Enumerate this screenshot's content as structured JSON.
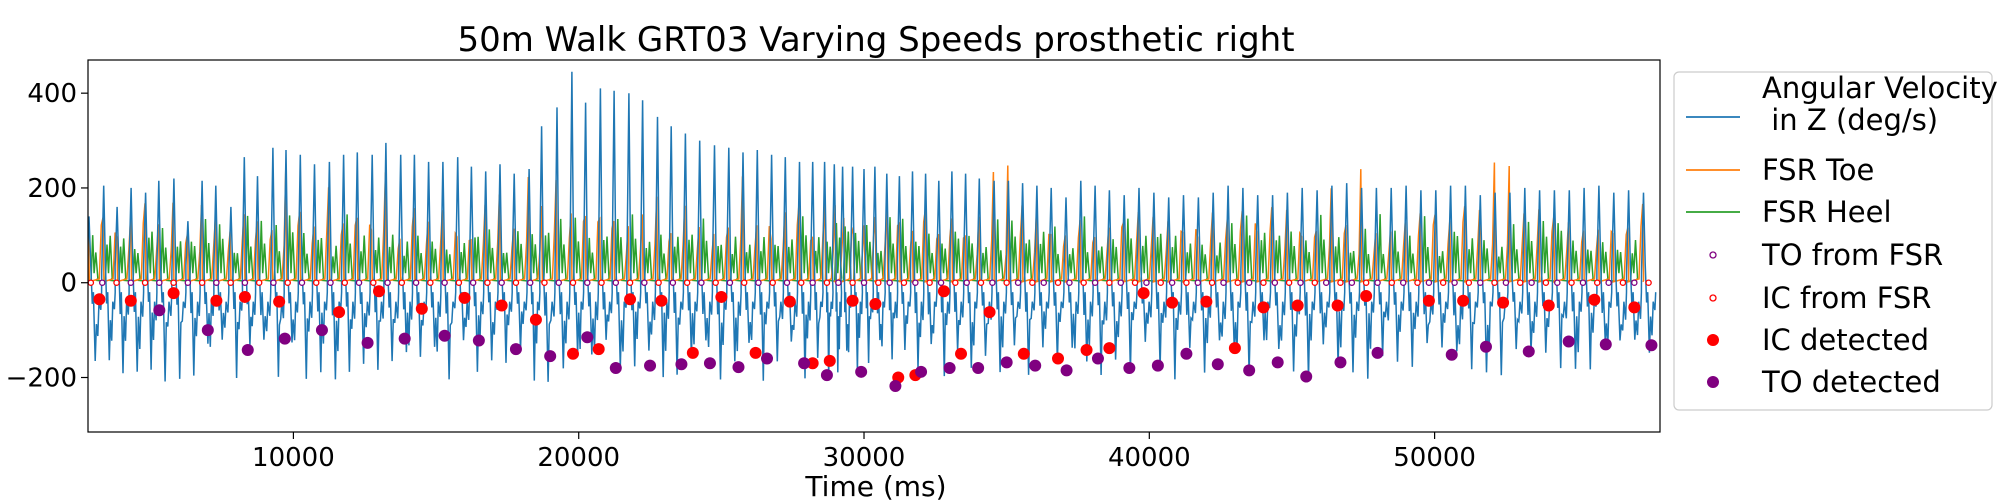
{
  "chart_data": {
    "type": "line",
    "title": "50m Walk GRT03 Varying Speeds prosthetic right",
    "xlabel": "Time (ms)",
    "ylabel": "",
    "xlim": [
      2800,
      57900
    ],
    "ylim": [
      -315,
      470
    ],
    "xticks": [
      10000,
      20000,
      30000,
      40000,
      50000
    ],
    "yticks": [
      -200,
      0,
      200,
      400
    ],
    "xtick_labels": [
      "10000",
      "20000",
      "30000",
      "40000",
      "50000"
    ],
    "ytick_labels": [
      "−200",
      "0",
      "200",
      "400"
    ],
    "grid": false,
    "legend_position": "outside-right",
    "series": [
      {
        "name": "Angular Velocity\n in Z (deg/s)",
        "kind": "line",
        "color": "#1f77b4",
        "x": [
          2836,
          3350,
          3820,
          4310,
          4820,
          5280,
          5810,
          6300,
          6800,
          7280,
          7810,
          8280,
          8740,
          9280,
          9740,
          10240,
          10740,
          11260,
          11760,
          12240,
          12760,
          13240,
          13760,
          14240,
          14740,
          15240,
          15760,
          16240,
          16740,
          17240,
          17740,
          18260,
          18700,
          19240,
          19760,
          20240,
          20760,
          21240,
          21760,
          22240,
          22760,
          23240,
          23740,
          24240,
          24760,
          25260,
          25760,
          26260,
          26760,
          27240,
          27740,
          28200,
          28620,
          28960,
          29250,
          29600,
          30000,
          30380,
          30800,
          31240,
          31700,
          32160,
          32620,
          33080,
          33560,
          34040,
          34560,
          35060,
          35560,
          36060,
          36560,
          37080,
          37600,
          38100,
          38600,
          39120,
          39640,
          40160,
          40680,
          41200,
          41720,
          42240,
          42760,
          43280,
          43800,
          44320,
          44840,
          45360,
          45880,
          46400,
          46920,
          47440,
          47960,
          48480,
          49000,
          49520,
          50040,
          50560,
          51080,
          51600,
          52120,
          52640,
          53160,
          53680,
          54200,
          54720,
          55240,
          55760,
          56280,
          56800,
          57320
        ],
        "peaks": [
          140,
          205,
          160,
          200,
          190,
          215,
          220,
          130,
          215,
          205,
          160,
          265,
          225,
          285,
          280,
          270,
          250,
          255,
          270,
          275,
          270,
          295,
          270,
          270,
          255,
          255,
          265,
          245,
          235,
          250,
          230,
          240,
          330,
          370,
          445,
          380,
          410,
          405,
          400,
          385,
          350,
          330,
          315,
          300,
          290,
          285,
          275,
          280,
          270,
          265,
          255,
          255,
          255,
          250,
          245,
          245,
          240,
          245,
          230,
          225,
          235,
          230,
          215,
          235,
          230,
          220,
          215,
          215,
          210,
          205,
          200,
          180,
          215,
          205,
          195,
          185,
          200,
          190,
          180,
          185,
          180,
          190,
          205,
          200,
          185,
          185,
          190,
          200,
          195,
          205,
          210,
          200,
          200,
          200,
          205,
          195,
          195,
          205,
          205,
          185,
          190,
          190,
          200,
          195,
          195,
          195,
          200,
          205,
          190,
          195,
          190
        ]
      }
    ],
    "to_from_fsr": [
      3300,
      4300,
      5300,
      6300,
      7300,
      8300,
      9300,
      10300,
      11300,
      12300,
      13300,
      14300,
      15300,
      16300,
      17300,
      18300,
      19300,
      20300,
      21300,
      22300,
      23300,
      24300,
      25300,
      26300,
      27300,
      28200,
      29100,
      30000,
      30900,
      31800,
      32700,
      33600,
      34500,
      35400,
      36300,
      37200,
      38100,
      39000,
      39900,
      40800,
      41700,
      42600,
      43500,
      44400,
      45300,
      46200,
      47100,
      48000,
      48900,
      49800,
      50700,
      51600,
      52500,
      53400,
      54300,
      55200,
      56100,
      57000
    ],
    "ic_from_fsr": [
      2900,
      3800,
      4800,
      5800,
      6800,
      7800,
      8800,
      9800,
      10800,
      11800,
      12800,
      13800,
      14800,
      15800,
      16800,
      17800,
      18800,
      19800,
      20800,
      21800,
      22800,
      23800,
      24800,
      25800,
      26800,
      27800,
      28700,
      29600,
      30500,
      31400,
      32300,
      33200,
      34100,
      35000,
      35900,
      36800,
      37700,
      38600,
      39500,
      40400,
      41300,
      42200,
      43100,
      44000,
      44900,
      45800,
      46700,
      47600,
      48500,
      49400,
      50300,
      51200,
      52100,
      53000,
      53900,
      54800,
      55700,
      56600,
      57500
    ],
    "ic_detected": {
      "x": [
        3200,
        4300,
        5800,
        7300,
        8300,
        9500,
        11600,
        13000,
        14500,
        16000,
        17300,
        18500,
        19800,
        20700,
        21800,
        22900,
        24000,
        25000,
        26200,
        27400,
        28200,
        28800,
        29600,
        30400,
        31200,
        31800,
        32800,
        33400,
        34400,
        35600,
        36800,
        37800,
        38600,
        39800,
        40800,
        42000,
        43000,
        44000,
        45200,
        46600,
        47600,
        49800,
        51000,
        52400,
        54000,
        55600,
        57000
      ],
      "y": [
        -35,
        -38,
        -22,
        -38,
        -30,
        -40,
        -62,
        -18,
        -55,
        -32,
        -48,
        -78,
        -150,
        -140,
        -35,
        -38,
        -148,
        -30,
        -148,
        -40,
        -170,
        -165,
        -38,
        -45,
        -200,
        -195,
        -18,
        -150,
        -62,
        -150,
        -160,
        -142,
        -138,
        -22,
        -42,
        -40,
        -138,
        -52,
        -48,
        -48,
        -28,
        -38,
        -38,
        -42,
        -48,
        -36,
        -52
      ]
    },
    "to_detected": {
      "x": [
        5300,
        7000,
        8400,
        9700,
        11000,
        12600,
        13900,
        15300,
        16500,
        17800,
        19000,
        20300,
        21300,
        22500,
        23600,
        24600,
        25600,
        26600,
        27900,
        28700,
        29900,
        31100,
        32000,
        33000,
        34000,
        35000,
        36000,
        37100,
        38200,
        39300,
        40300,
        41300,
        42400,
        43500,
        44500,
        45500,
        46700,
        48000,
        50600,
        51800,
        53300,
        54700,
        56000,
        57600
      ],
      "y": [
        -58,
        -100,
        -142,
        -118,
        -100,
        -127,
        -118,
        -112,
        -122,
        -140,
        -155,
        -115,
        -180,
        -175,
        -172,
        -170,
        -178,
        -160,
        -170,
        -195,
        -188,
        -218,
        -188,
        -180,
        -180,
        -168,
        -175,
        -185,
        -160,
        -180,
        -175,
        -150,
        -172,
        -185,
        -168,
        -198,
        -168,
        -148,
        -152,
        -135,
        -145,
        -124,
        -130,
        -132
      ]
    },
    "legend": [
      {
        "label": "Angular Velocity\n in Z (deg/s)",
        "kind": "line",
        "color": "#1f77b4"
      },
      {
        "label": "FSR Toe",
        "kind": "line",
        "color": "#ff7f0e"
      },
      {
        "label": "FSR Heel",
        "kind": "line",
        "color": "#2ca02c"
      },
      {
        "label": "TO from FSR",
        "kind": "open-dot",
        "color": "#800080"
      },
      {
        "label": "IC from FSR",
        "kind": "open-dot",
        "color": "#ff0000"
      },
      {
        "label": "IC detected",
        "kind": "dot",
        "color": "#ff0000"
      },
      {
        "label": "TO detected",
        "kind": "dot",
        "color": "#800080"
      }
    ]
  }
}
